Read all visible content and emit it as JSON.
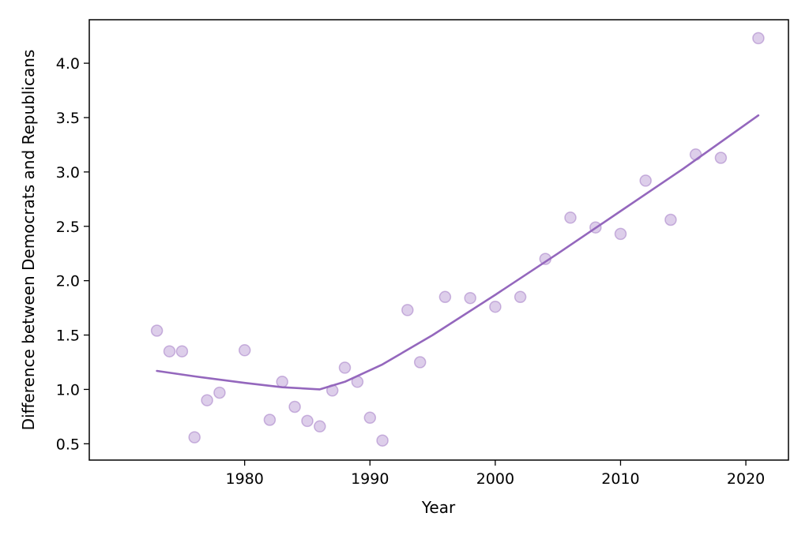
{
  "chart_data": {
    "type": "scatter",
    "title": "",
    "xlabel": "Year",
    "ylabel": "Difference between Democrats and Republicans",
    "xlim": [
      1967.6,
      2023.4
    ],
    "ylim": [
      0.35,
      4.4
    ],
    "xticks": [
      1980,
      1990,
      2000,
      2010,
      2020
    ],
    "xtick_labels": [
      "1980",
      "1990",
      "2000",
      "2010",
      "2020"
    ],
    "yticks": [
      0.5,
      1.0,
      1.5,
      2.0,
      2.5,
      3.0,
      3.5,
      4.0
    ],
    "ytick_labels": [
      "0.5",
      "1.0",
      "1.5",
      "2.0",
      "2.5",
      "3.0",
      "3.5",
      "4.0"
    ],
    "grid": false,
    "colors": {
      "points": "#9467bd",
      "trend": "#9467bd"
    },
    "series": [
      {
        "kind": "scatter",
        "x": [
          1973,
          1974,
          1975,
          1976,
          1977,
          1978,
          1980,
          1982,
          1983,
          1984,
          1985,
          1986,
          1987,
          1988,
          1989,
          1990,
          1991,
          1993,
          1994,
          1996,
          1998,
          2000,
          2002,
          2004,
          2006,
          2008,
          2010,
          2012,
          2014,
          2016,
          2018,
          2021
        ],
        "y": [
          1.54,
          1.35,
          1.35,
          0.56,
          0.9,
          0.97,
          1.36,
          0.72,
          1.07,
          0.84,
          0.71,
          0.66,
          0.99,
          1.2,
          1.07,
          0.74,
          0.53,
          1.73,
          1.25,
          1.85,
          1.84,
          1.76,
          1.85,
          2.2,
          2.58,
          2.49,
          2.43,
          2.92,
          2.56,
          3.16,
          3.13,
          4.23
        ]
      },
      {
        "kind": "line",
        "x": [
          1973,
          1976,
          1980,
          1983,
          1986,
          1988,
          1991,
          1995,
          2000,
          2005,
          2010,
          2015,
          2021
        ],
        "y": [
          1.17,
          1.12,
          1.06,
          1.02,
          1.0,
          1.07,
          1.23,
          1.5,
          1.87,
          2.25,
          2.64,
          3.03,
          3.52
        ]
      }
    ]
  }
}
